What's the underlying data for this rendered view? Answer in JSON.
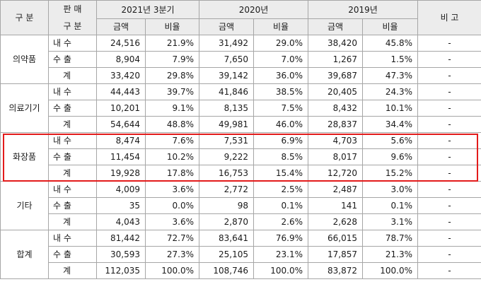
{
  "header": {
    "gubun": "구 분",
    "panmae": "판 매",
    "panmae_gubun": "구 분",
    "period1": "2021년 3분기",
    "period2": "2020년",
    "period3": "2019년",
    "remark": "비 고",
    "amount": "금액",
    "ratio": "비율"
  },
  "rows": [
    {
      "category": "의약품",
      "sub": [
        {
          "type": "내 수",
          "v": [
            "24,516",
            "21.9%",
            "31,492",
            "29.0%",
            "38,420",
            "45.8%"
          ],
          "remark": "-"
        },
        {
          "type": "수 출",
          "v": [
            "8,904",
            "7.9%",
            "7,650",
            "7.0%",
            "1,267",
            "1.5%"
          ],
          "remark": "-"
        },
        {
          "type": "계",
          "v": [
            "33,420",
            "29.8%",
            "39,142",
            "36.0%",
            "39,687",
            "47.3%"
          ],
          "remark": "-"
        }
      ]
    },
    {
      "category": "의료기기",
      "sub": [
        {
          "type": "내 수",
          "v": [
            "44,443",
            "39.7%",
            "41,846",
            "38.5%",
            "20,405",
            "24.3%"
          ],
          "remark": "-"
        },
        {
          "type": "수 출",
          "v": [
            "10,201",
            "9.1%",
            "8,135",
            "7.5%",
            "8,432",
            "10.1%"
          ],
          "remark": "-"
        },
        {
          "type": "계",
          "v": [
            "54,644",
            "48.8%",
            "49,981",
            "46.0%",
            "28,837",
            "34.4%"
          ],
          "remark": "-"
        }
      ]
    },
    {
      "category": "화장품",
      "sub": [
        {
          "type": "내 수",
          "v": [
            "8,474",
            "7.6%",
            "7,531",
            "6.9%",
            "4,703",
            "5.6%"
          ],
          "remark": "-"
        },
        {
          "type": "수 출",
          "v": [
            "11,454",
            "10.2%",
            "9,222",
            "8.5%",
            "8,017",
            "9.6%"
          ],
          "remark": "-"
        },
        {
          "type": "계",
          "v": [
            "19,928",
            "17.8%",
            "16,753",
            "15.4%",
            "12,720",
            "15.2%"
          ],
          "remark": "-"
        }
      ]
    },
    {
      "category": "기타",
      "sub": [
        {
          "type": "내 수",
          "v": [
            "4,009",
            "3.6%",
            "2,772",
            "2.5%",
            "2,487",
            "3.0%"
          ],
          "remark": "-"
        },
        {
          "type": "수 출",
          "v": [
            "35",
            "0.0%",
            "98",
            "0.1%",
            "141",
            "0.1%"
          ],
          "remark": "-"
        },
        {
          "type": "계",
          "v": [
            "4,043",
            "3.6%",
            "2,870",
            "2.6%",
            "2,628",
            "3.1%"
          ],
          "remark": "-"
        }
      ]
    },
    {
      "category": "합계",
      "sub": [
        {
          "type": "내 수",
          "v": [
            "81,442",
            "72.7%",
            "83,641",
            "76.9%",
            "66,015",
            "78.7%"
          ],
          "remark": "-"
        },
        {
          "type": "수 출",
          "v": [
            "30,593",
            "27.3%",
            "25,105",
            "23.1%",
            "17,857",
            "21.3%"
          ],
          "remark": "-"
        },
        {
          "type": "계",
          "v": [
            "112,035",
            "100.0%",
            "108,746",
            "100.0%",
            "83,872",
            "100.0%"
          ],
          "remark": "-"
        }
      ]
    }
  ],
  "highlight": {
    "group_index": 2,
    "border_color": "#e31b1b"
  }
}
